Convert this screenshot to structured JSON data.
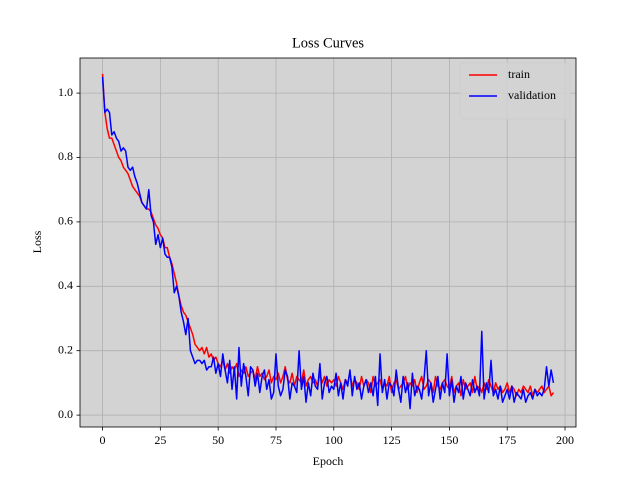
{
  "chart_data": {
    "type": "line",
    "title": "Loss Curves",
    "x_label": "Epoch",
    "y_label": "Loss",
    "x": [
      0,
      1,
      2,
      3,
      4,
      5,
      6,
      7,
      8,
      9,
      10,
      11,
      12,
      13,
      14,
      15,
      16,
      17,
      18,
      19,
      20,
      21,
      22,
      23,
      24,
      25,
      26,
      27,
      28,
      29,
      30,
      31,
      32,
      33,
      34,
      35,
      36,
      37,
      38,
      39,
      40,
      41,
      42,
      43,
      44,
      45,
      46,
      47,
      48,
      49,
      50,
      51,
      52,
      53,
      54,
      55,
      56,
      57,
      58,
      59,
      60,
      61,
      62,
      63,
      64,
      65,
      66,
      67,
      68,
      69,
      70,
      71,
      72,
      73,
      74,
      75,
      76,
      77,
      78,
      79,
      80,
      81,
      82,
      83,
      84,
      85,
      86,
      87,
      88,
      89,
      90,
      91,
      92,
      93,
      94,
      95,
      96,
      97,
      98,
      99,
      100,
      101,
      102,
      103,
      104,
      105,
      106,
      107,
      108,
      109,
      110,
      111,
      112,
      113,
      114,
      115,
      116,
      117,
      118,
      119,
      120,
      121,
      122,
      123,
      124,
      125,
      126,
      127,
      128,
      129,
      130,
      131,
      132,
      133,
      134,
      135,
      136,
      137,
      138,
      139,
      140,
      141,
      142,
      143,
      144,
      145,
      146,
      147,
      148,
      149,
      150,
      151,
      152,
      153,
      154,
      155,
      156,
      157,
      158,
      159,
      160,
      161,
      162,
      163,
      164,
      165,
      166,
      167,
      168,
      169,
      170,
      171,
      172,
      173,
      174,
      175,
      176,
      177,
      178,
      179,
      180,
      181,
      182,
      183,
      184,
      185,
      186,
      187,
      188,
      189,
      190,
      191,
      192,
      193,
      194,
      195
    ],
    "series": [
      {
        "name": "train",
        "color": "#ff0000",
        "values": [
          1.06,
          0.94,
          0.89,
          0.86,
          0.86,
          0.84,
          0.82,
          0.8,
          0.79,
          0.77,
          0.76,
          0.75,
          0.73,
          0.71,
          0.7,
          0.69,
          0.68,
          0.66,
          0.65,
          0.64,
          0.64,
          0.63,
          0.61,
          0.59,
          0.58,
          0.56,
          0.55,
          0.52,
          0.52,
          0.49,
          0.47,
          0.44,
          0.41,
          0.37,
          0.34,
          0.32,
          0.31,
          0.29,
          0.27,
          0.25,
          0.22,
          0.21,
          0.2,
          0.21,
          0.19,
          0.21,
          0.18,
          0.19,
          0.17,
          0.18,
          0.16,
          0.15,
          0.17,
          0.14,
          0.16,
          0.13,
          0.15,
          0.14,
          0.16,
          0.12,
          0.14,
          0.13,
          0.15,
          0.12,
          0.13,
          0.14,
          0.11,
          0.15,
          0.12,
          0.13,
          0.11,
          0.12,
          0.14,
          0.1,
          0.12,
          0.11,
          0.13,
          0.1,
          0.12,
          0.15,
          0.11,
          0.1,
          0.13,
          0.09,
          0.12,
          0.11,
          0.1,
          0.14,
          0.09,
          0.11,
          0.12,
          0.1,
          0.11,
          0.09,
          0.13,
          0.1,
          0.12,
          0.09,
          0.11,
          0.1,
          0.11,
          0.09,
          0.12,
          0.1,
          0.08,
          0.11,
          0.1,
          0.13,
          0.09,
          0.11,
          0.1,
          0.08,
          0.12,
          0.09,
          0.11,
          0.1,
          0.07,
          0.12,
          0.09,
          0.1,
          0.11,
          0.08,
          0.1,
          0.09,
          0.12,
          0.07,
          0.1,
          0.11,
          0.08,
          0.09,
          0.1,
          0.12,
          0.08,
          0.1,
          0.09,
          0.11,
          0.07,
          0.1,
          0.12,
          0.08,
          0.09,
          0.11,
          0.1,
          0.07,
          0.12,
          0.09,
          0.08,
          0.1,
          0.11,
          0.09,
          0.08,
          0.12,
          0.07,
          0.09,
          0.1,
          0.06,
          0.11,
          0.08,
          0.09,
          0.1,
          0.07,
          0.12,
          0.08,
          0.09,
          0.07,
          0.1,
          0.08,
          0.11,
          0.09,
          0.07,
          0.1,
          0.08,
          0.09,
          0.07,
          0.08,
          0.1,
          0.07,
          0.09,
          0.08,
          0.06,
          0.08,
          0.07,
          0.09,
          0.08,
          0.07,
          0.09,
          0.06,
          0.08,
          0.07,
          0.08,
          0.09,
          0.07,
          0.08,
          0.09,
          0.06,
          0.07
        ]
      },
      {
        "name": "validation",
        "color": "#0000ff",
        "values": [
          1.05,
          0.94,
          0.95,
          0.94,
          0.87,
          0.88,
          0.86,
          0.85,
          0.82,
          0.83,
          0.82,
          0.77,
          0.76,
          0.77,
          0.74,
          0.72,
          0.69,
          0.66,
          0.65,
          0.64,
          0.7,
          0.62,
          0.6,
          0.53,
          0.56,
          0.52,
          0.55,
          0.5,
          0.49,
          0.49,
          0.46,
          0.38,
          0.4,
          0.37,
          0.32,
          0.29,
          0.25,
          0.3,
          0.2,
          0.18,
          0.16,
          0.17,
          0.17,
          0.16,
          0.17,
          0.14,
          0.15,
          0.15,
          0.18,
          0.13,
          0.16,
          0.12,
          0.19,
          0.14,
          0.1,
          0.17,
          0.08,
          0.15,
          0.05,
          0.21,
          0.09,
          0.16,
          0.12,
          0.06,
          0.15,
          0.14,
          0.09,
          0.13,
          0.07,
          0.12,
          0.14,
          0.08,
          0.11,
          0.05,
          0.07,
          0.19,
          0.09,
          0.06,
          0.08,
          0.14,
          0.12,
          0.05,
          0.1,
          0.09,
          0.07,
          0.2,
          0.08,
          0.12,
          0.04,
          0.1,
          0.06,
          0.13,
          0.09,
          0.08,
          0.16,
          0.05,
          0.1,
          0.12,
          0.07,
          0.09,
          0.08,
          0.13,
          0.06,
          0.1,
          0.05,
          0.11,
          0.09,
          0.14,
          0.06,
          0.12,
          0.08,
          0.1,
          0.05,
          0.09,
          0.11,
          0.07,
          0.1,
          0.06,
          0.12,
          0.03,
          0.19,
          0.07,
          0.11,
          0.05,
          0.1,
          0.09,
          0.06,
          0.14,
          0.08,
          0.04,
          0.12,
          0.07,
          0.1,
          0.02,
          0.13,
          0.06,
          0.09,
          0.08,
          0.05,
          0.11,
          0.2,
          0.06,
          0.1,
          0.04,
          0.08,
          0.12,
          0.05,
          0.1,
          0.07,
          0.19,
          0.06,
          0.11,
          0.04,
          0.09,
          0.07,
          0.12,
          0.05,
          0.1,
          0.08,
          0.06,
          0.11,
          0.07,
          0.09,
          0.06,
          0.26,
          0.05,
          0.1,
          0.07,
          0.17,
          0.06,
          0.08,
          0.05,
          0.09,
          0.04,
          0.06,
          0.08,
          0.05,
          0.09,
          0.04,
          0.07,
          0.06,
          0.05,
          0.08,
          0.04,
          0.06,
          0.07,
          0.05,
          0.08,
          0.06,
          0.07,
          0.06,
          0.08,
          0.15,
          0.09,
          0.14,
          0.1
        ]
      }
    ],
    "xlim": [
      -9.75,
      204.75
    ],
    "xticks": [
      0,
      25,
      50,
      75,
      100,
      125,
      150,
      175,
      200
    ],
    "ylim": [
      -0.037,
      1.109
    ],
    "yticks": [
      {
        "value": 0,
        "label": "0.0"
      },
      0.2,
      0.4,
      0.6,
      0.8,
      {
        "value": 1,
        "label": "1.0"
      }
    ],
    "grid": true,
    "legend": "upper right",
    "background": "#d3d3d3"
  }
}
